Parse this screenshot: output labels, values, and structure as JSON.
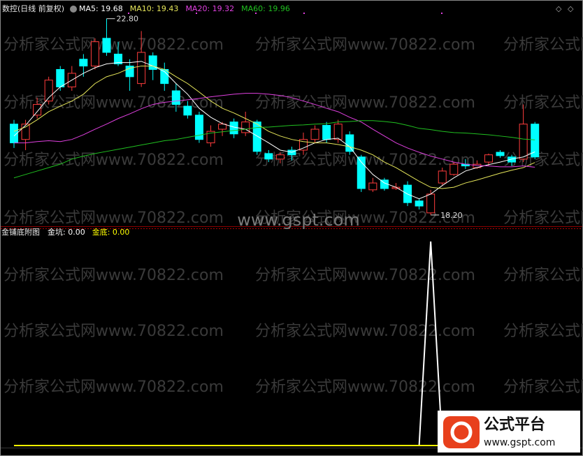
{
  "chart_data": [
    {
      "type": "candlestick",
      "title": "数控(日线 前复权)",
      "open": [
        20.33,
        19.97,
        20.54,
        20.87,
        21.61,
        21.2,
        21.85,
        21.69,
        22.34,
        21.97,
        21.69,
        21.28,
        21.93,
        21.61,
        21.11,
        20.75,
        20.54,
        19.89,
        20.21,
        20.38,
        20.13,
        20.38,
        19.64,
        19.51,
        19.72,
        19.72,
        19.97,
        20.3,
        19.97,
        20.08,
        19.56,
        18.79,
        19.02,
        18.82,
        18.9,
        18.53,
        18.25,
        18.95,
        19.15,
        19.39,
        19.31,
        19.44,
        19.67,
        19.56,
        19.51,
        20.33
      ],
      "high": [
        20.43,
        20.43,
        20.95,
        21.44,
        21.69,
        21.69,
        21.97,
        22.34,
        22.8,
        22.26,
        21.85,
        22.51,
        22.01,
        21.77,
        21.28,
        20.87,
        20.62,
        20.3,
        20.38,
        20.46,
        20.62,
        20.43,
        19.72,
        19.67,
        19.8,
        20.13,
        20.3,
        20.38,
        20.43,
        20.16,
        19.61,
        19.07,
        19.07,
        18.95,
        18.99,
        18.58,
        18.79,
        19.31,
        19.44,
        19.51,
        19.48,
        19.64,
        19.72,
        19.61,
        20.79,
        20.38
      ],
      "low": [
        19.77,
        19.72,
        20.46,
        20.79,
        21.11,
        21.11,
        21.44,
        21.61,
        21.93,
        21.69,
        21.11,
        21.2,
        21.36,
        21.11,
        20.62,
        20.46,
        19.89,
        19.8,
        20.05,
        20.0,
        20.05,
        19.61,
        19.44,
        19.41,
        19.48,
        19.61,
        19.89,
        19.89,
        19.89,
        19.61,
        18.74,
        18.74,
        18.77,
        18.79,
        18.41,
        18.33,
        18.2,
        18.9,
        19.12,
        19.28,
        19.28,
        19.35,
        19.54,
        19.35,
        19.44,
        19.51
      ],
      "close": [
        19.89,
        20.33,
        20.79,
        21.36,
        21.2,
        21.52,
        21.69,
        22.26,
        22.01,
        21.74,
        21.44,
        22.01,
        21.61,
        21.28,
        20.79,
        20.54,
        19.97,
        20.16,
        20.33,
        20.1,
        20.38,
        19.69,
        19.51,
        19.61,
        19.61,
        19.97,
        20.21,
        19.97,
        20.33,
        19.69,
        18.82,
        18.95,
        18.82,
        18.85,
        18.49,
        18.41,
        18.69,
        19.23,
        19.39,
        19.35,
        19.39,
        19.61,
        19.59,
        19.44,
        20.33,
        19.56
      ],
      "up_color": "#ff3c3c",
      "down_color": "#00ffff",
      "ylim": [
        17.92,
        22.91
      ],
      "series": [
        {
          "name": "MA5: 19.68",
          "color": "#ffffff",
          "values": [
            20.05,
            20.3,
            20.62,
            20.95,
            21.2,
            21.36,
            21.52,
            21.65,
            21.74,
            21.77,
            21.77,
            21.8,
            21.69,
            21.56,
            21.28,
            21.03,
            20.7,
            20.49,
            20.34,
            20.26,
            20.21,
            20.05,
            19.89,
            19.72,
            19.67,
            19.77,
            19.89,
            19.97,
            20.0,
            19.8,
            19.44,
            19.15,
            18.95,
            18.85,
            18.69,
            18.58,
            18.69,
            18.89,
            19.07,
            19.23,
            19.31,
            19.38,
            19.44,
            19.51,
            19.56,
            19.68
          ]
        },
        {
          "name": "MA10: 19.43",
          "color": "#e6e65a",
          "values": [
            20.16,
            20.26,
            20.43,
            20.62,
            20.75,
            20.87,
            21.03,
            21.28,
            21.44,
            21.52,
            21.64,
            21.69,
            21.69,
            21.61,
            21.44,
            21.28,
            21.08,
            20.87,
            20.7,
            20.59,
            20.46,
            20.33,
            20.16,
            20.05,
            19.97,
            19.92,
            19.89,
            19.89,
            19.85,
            19.8,
            19.72,
            19.61,
            19.44,
            19.31,
            19.15,
            18.99,
            18.85,
            18.82,
            18.85,
            18.95,
            19.02,
            19.1,
            19.18,
            19.25,
            19.31,
            19.43
          ]
        },
        {
          "name": "MA20: 19.32",
          "color": "#e040e0",
          "values": [
            19.89,
            19.89,
            19.92,
            19.94,
            19.92,
            19.97,
            20.08,
            20.21,
            20.33,
            20.46,
            20.57,
            20.69,
            20.79,
            20.84,
            20.87,
            20.9,
            20.93,
            20.97,
            21.0,
            21.03,
            21.05,
            21.05,
            21.03,
            21.0,
            20.95,
            20.87,
            20.79,
            20.7,
            20.62,
            20.49,
            20.38,
            20.21,
            20.05,
            19.89,
            19.77,
            19.67,
            19.58,
            19.51,
            19.44,
            19.39,
            19.36,
            19.35,
            19.33,
            19.33,
            19.35,
            19.32
          ]
        },
        {
          "name": "MA60: 19.96",
          "color": "#20c020",
          "values": [
            19.07,
            19.15,
            19.23,
            19.31,
            19.39,
            19.51,
            19.58,
            19.64,
            19.69,
            19.74,
            19.79,
            19.84,
            19.89,
            19.94,
            19.97,
            20.02,
            20.07,
            20.12,
            20.15,
            20.18,
            20.21,
            20.25,
            20.26,
            20.28,
            20.3,
            20.31,
            20.33,
            20.34,
            20.38,
            20.39,
            20.41,
            20.41,
            20.39,
            20.36,
            20.3,
            20.23,
            20.2,
            20.16,
            20.13,
            20.12,
            20.1,
            20.08,
            20.05,
            20.02,
            19.98,
            19.96
          ]
        }
      ],
      "annotations": [
        {
          "label": "22.80",
          "value": 22.8
        },
        {
          "label": "18.20",
          "value": 18.2
        }
      ]
    },
    {
      "type": "line",
      "title": "金铺底附图",
      "ylim": [
        0,
        1.02
      ],
      "series": [
        {
          "name": "金坑: 0.00",
          "color": "#ffffff",
          "values": [
            0,
            0,
            0,
            0,
            0,
            0,
            0,
            0,
            0,
            0,
            0,
            0,
            0,
            0,
            0,
            0,
            0,
            0,
            0,
            0,
            0,
            0,
            0,
            0,
            0,
            0,
            0,
            0,
            0,
            0,
            0,
            0,
            0,
            0,
            0,
            0,
            1,
            0,
            0,
            0,
            0,
            0,
            0,
            0,
            0,
            0
          ]
        },
        {
          "name": "金底: 0.00",
          "color": "#ffff00",
          "values": [
            0,
            0,
            0,
            0,
            0,
            0,
            0,
            0,
            0,
            0,
            0,
            0,
            0,
            0,
            0,
            0,
            0,
            0,
            0,
            0,
            0,
            0,
            0,
            0,
            0,
            0,
            0,
            0,
            0,
            0,
            0,
            0,
            0,
            0,
            0,
            0,
            0,
            0,
            0,
            0,
            0,
            0,
            0,
            0,
            0,
            0
          ]
        }
      ]
    }
  ],
  "watermarks": [
    "分析家公式网www.70822.com",
    "www.gspt.com"
  ],
  "logo": {
    "title": "公式平台",
    "url": "www.gspt.com"
  }
}
